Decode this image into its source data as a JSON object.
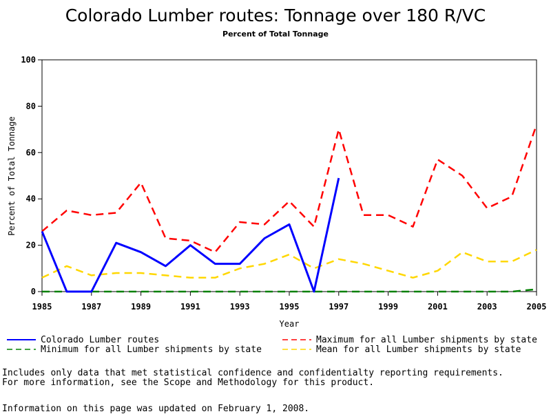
{
  "chart_data": {
    "type": "line",
    "title": "Colorado Lumber routes: Tonnage over 180 R/VC",
    "subtitle": "Percent of Total Tonnage",
    "xlabel": "Year",
    "ylabel": "Percent of Total Tonnage",
    "xlim": [
      1985,
      2005
    ],
    "ylim": [
      0,
      100
    ],
    "x_ticks": [
      "1985",
      "1987",
      "1989",
      "1991",
      "1993",
      "1995",
      "1997",
      "1999",
      "2001",
      "2003",
      "2005"
    ],
    "y_ticks": [
      "0",
      "20",
      "40",
      "60",
      "80",
      "100"
    ],
    "legend_position": "bottom",
    "series": [
      {
        "name": "Colorado Lumber routes",
        "color": "#0000ff",
        "style": "solid",
        "x": [
          1985,
          1986,
          1987,
          1988,
          1989,
          1990,
          1991,
          1992,
          1993,
          1994,
          1995,
          1996,
          1997
        ],
        "values": [
          26,
          0,
          0,
          21,
          17,
          11,
          20,
          12,
          12,
          23,
          29,
          0,
          49
        ]
      },
      {
        "name": "Maximum for all Lumber shipments by state",
        "color": "#ff0000",
        "style": "dashed",
        "x": [
          1985,
          1986,
          1987,
          1988,
          1989,
          1990,
          1991,
          1992,
          1993,
          1994,
          1995,
          1996,
          1997,
          1998,
          1999,
          2000,
          2001,
          2002,
          2003,
          2004,
          2005
        ],
        "values": [
          26,
          35,
          33,
          34,
          47,
          23,
          22,
          17,
          30,
          29,
          39,
          28,
          70,
          33,
          33,
          28,
          57,
          50,
          36,
          41,
          72
        ]
      },
      {
        "name": "Minimum for all Lumber shipments by state",
        "color": "#008000",
        "style": "dashed",
        "x": [
          1985,
          1986,
          1987,
          1988,
          1989,
          1990,
          1991,
          1992,
          1993,
          1994,
          1995,
          1996,
          1997,
          1998,
          1999,
          2000,
          2001,
          2002,
          2003,
          2004,
          2005
        ],
        "values": [
          0,
          0,
          0,
          0,
          0,
          0,
          0,
          0,
          0,
          0,
          0,
          0,
          0,
          0,
          0,
          0,
          0,
          0,
          0,
          0,
          1
        ]
      },
      {
        "name": "Mean for all Lumber shipments by state",
        "color": "#ffd700",
        "style": "dashed",
        "x": [
          1985,
          1986,
          1987,
          1988,
          1989,
          1990,
          1991,
          1992,
          1993,
          1994,
          1995,
          1996,
          1997,
          1998,
          1999,
          2000,
          2001,
          2002,
          2003,
          2004,
          2005
        ],
        "values": [
          6,
          11,
          7,
          8,
          8,
          7,
          6,
          6,
          10,
          12,
          16,
          10,
          14,
          12,
          9,
          6,
          9,
          17,
          13,
          13,
          18
        ]
      }
    ]
  },
  "footnote": {
    "line1": "Includes only data that met statistical confidence and confidentialty reporting requirements.",
    "line2": "For more information, see the Scope and Methodology for this product.",
    "updated": "Information on this page was updated on February 1, 2008."
  }
}
